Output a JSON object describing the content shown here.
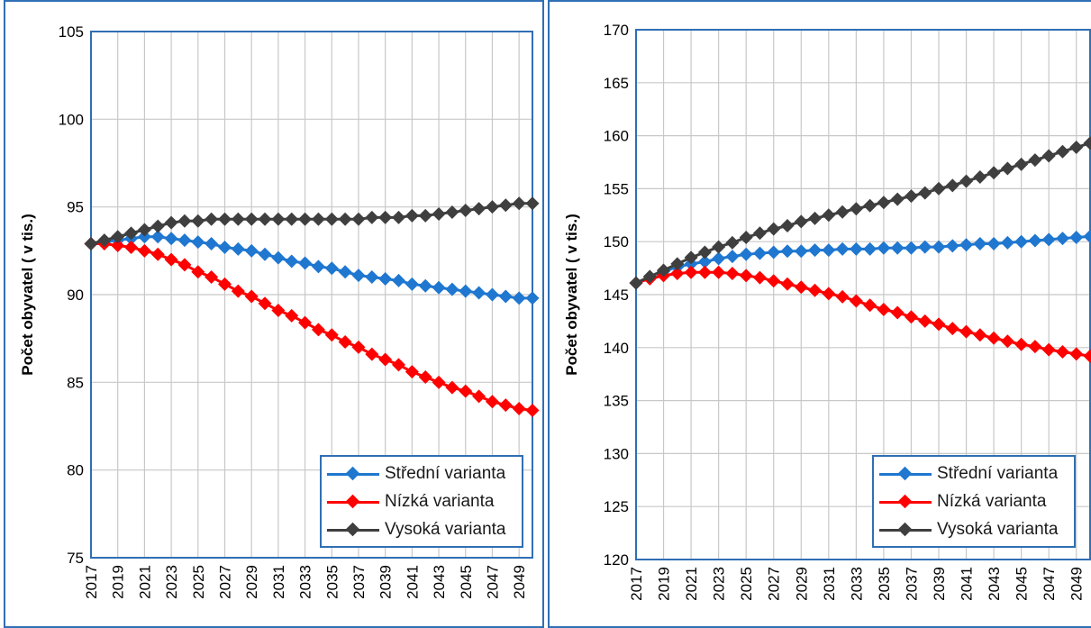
{
  "chart_data": [
    {
      "type": "line",
      "ylabel": "Počet obyvatel ( v tis.)",
      "xlabel": "",
      "title": "",
      "ylim": [
        75,
        105
      ],
      "yticks": [
        "75",
        "80",
        "85",
        "90",
        "95",
        "100",
        "105"
      ],
      "x": [
        2017,
        2018,
        2019,
        2020,
        2021,
        2022,
        2023,
        2024,
        2025,
        2026,
        2027,
        2028,
        2029,
        2030,
        2031,
        2032,
        2033,
        2034,
        2035,
        2036,
        2037,
        2038,
        2039,
        2040,
        2041,
        2042,
        2043,
        2044,
        2045,
        2046,
        2047,
        2048,
        2049,
        2050
      ],
      "xtick_labels": [
        "2017",
        "2019",
        "2021",
        "2023",
        "2025",
        "2027",
        "2029",
        "2031",
        "2033",
        "2035",
        "2037",
        "2039",
        "2041",
        "2043",
        "2045",
        "2047",
        "2049"
      ],
      "grid": true,
      "legend": "bottom-right",
      "series": [
        {
          "name": "Střední varianta",
          "color": "#1f77d0",
          "values": [
            92.9,
            93.0,
            93.1,
            93.2,
            93.3,
            93.3,
            93.2,
            93.1,
            93.0,
            92.9,
            92.7,
            92.6,
            92.5,
            92.3,
            92.1,
            91.9,
            91.8,
            91.6,
            91.5,
            91.3,
            91.1,
            91.0,
            90.9,
            90.8,
            90.6,
            90.5,
            90.4,
            90.3,
            90.2,
            90.1,
            90.0,
            89.9,
            89.8,
            89.8
          ]
        },
        {
          "name": "Nízká varianta",
          "color": "#ff0000",
          "values": [
            92.9,
            92.9,
            92.8,
            92.7,
            92.5,
            92.3,
            92.0,
            91.7,
            91.3,
            91.0,
            90.6,
            90.2,
            89.9,
            89.5,
            89.1,
            88.8,
            88.4,
            88.0,
            87.7,
            87.3,
            87.0,
            86.6,
            86.3,
            86.0,
            85.6,
            85.3,
            85.0,
            84.7,
            84.5,
            84.2,
            83.9,
            83.7,
            83.5,
            83.4
          ]
        },
        {
          "name": "Vysoká varianta",
          "color": "#3f3f3f",
          "values": [
            92.9,
            93.1,
            93.3,
            93.5,
            93.7,
            93.9,
            94.1,
            94.2,
            94.2,
            94.3,
            94.3,
            94.3,
            94.3,
            94.3,
            94.3,
            94.3,
            94.3,
            94.3,
            94.3,
            94.3,
            94.3,
            94.4,
            94.4,
            94.4,
            94.5,
            94.5,
            94.6,
            94.7,
            94.8,
            94.9,
            95.0,
            95.1,
            95.2,
            95.2
          ]
        }
      ]
    },
    {
      "type": "line",
      "ylabel": "Počet obyvatel ( v tis.)",
      "xlabel": "",
      "title": "",
      "ylim": [
        120,
        170
      ],
      "yticks": [
        "120",
        "125",
        "130",
        "135",
        "140",
        "145",
        "150",
        "155",
        "160",
        "165",
        "170"
      ],
      "x": [
        2017,
        2018,
        2019,
        2020,
        2021,
        2022,
        2023,
        2024,
        2025,
        2026,
        2027,
        2028,
        2029,
        2030,
        2031,
        2032,
        2033,
        2034,
        2035,
        2036,
        2037,
        2038,
        2039,
        2040,
        2041,
        2042,
        2043,
        2044,
        2045,
        2046,
        2047,
        2048,
        2049,
        2050
      ],
      "xtick_labels": [
        "2017",
        "2019",
        "2021",
        "2023",
        "2025",
        "2027",
        "2029",
        "2031",
        "2033",
        "2035",
        "2037",
        "2039",
        "2041",
        "2043",
        "2045",
        "2047",
        "2049"
      ],
      "grid": true,
      "legend": "bottom-right",
      "series": [
        {
          "name": "Střední varianta",
          "color": "#1f77d0",
          "values": [
            146.1,
            146.7,
            147.2,
            147.6,
            147.9,
            148.1,
            148.4,
            148.6,
            148.8,
            148.9,
            149.0,
            149.1,
            149.1,
            149.2,
            149.2,
            149.3,
            149.3,
            149.3,
            149.4,
            149.4,
            149.4,
            149.5,
            149.5,
            149.6,
            149.7,
            149.8,
            149.8,
            149.9,
            150.0,
            150.1,
            150.2,
            150.3,
            150.4,
            150.5
          ]
        },
        {
          "name": "Nízká varianta",
          "color": "#ff0000",
          "values": [
            146.1,
            146.5,
            146.8,
            147.0,
            147.1,
            147.1,
            147.1,
            147.0,
            146.8,
            146.6,
            146.3,
            146.0,
            145.7,
            145.4,
            145.1,
            144.8,
            144.4,
            144.0,
            143.6,
            143.3,
            142.9,
            142.5,
            142.2,
            141.8,
            141.5,
            141.2,
            140.9,
            140.6,
            140.3,
            140.1,
            139.8,
            139.6,
            139.4,
            139.2
          ]
        },
        {
          "name": "Vysoká varianta",
          "color": "#3f3f3f",
          "values": [
            146.1,
            146.7,
            147.3,
            147.9,
            148.5,
            149.0,
            149.5,
            149.9,
            150.4,
            150.8,
            151.2,
            151.5,
            151.9,
            152.2,
            152.5,
            152.8,
            153.1,
            153.4,
            153.7,
            154.0,
            154.3,
            154.6,
            155.0,
            155.3,
            155.7,
            156.1,
            156.5,
            156.9,
            157.3,
            157.7,
            158.1,
            158.5,
            158.9,
            159.3
          ]
        }
      ]
    }
  ]
}
